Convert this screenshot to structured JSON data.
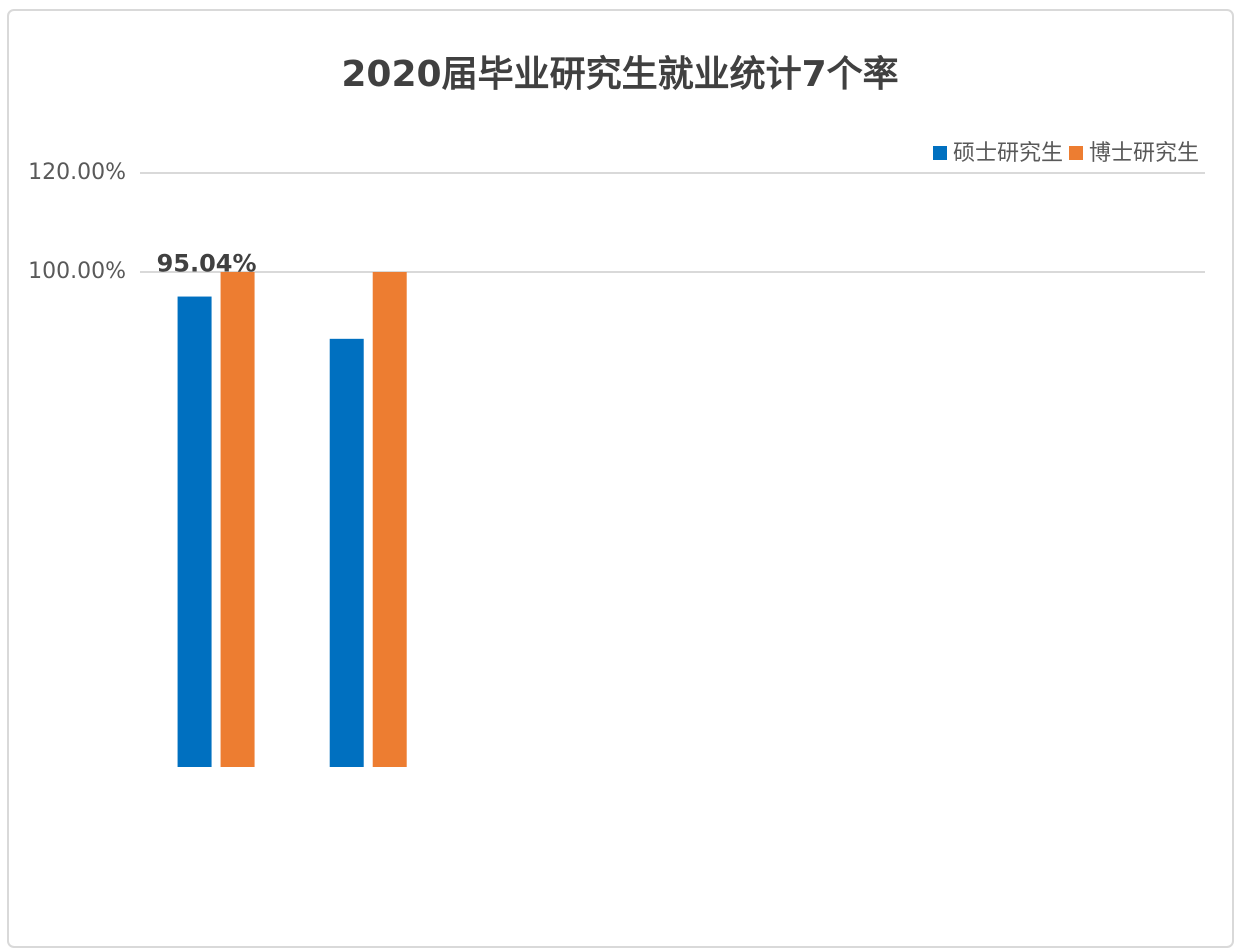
{
  "chart_data": {
    "type": "bar",
    "title": "2020届毕业研究生就业统计7个率",
    "categories": [
      null,
      null,
      null,
      null,
      null,
      null,
      null
    ],
    "series": [
      {
        "name": "硕士研究生",
        "color": "#0070c0",
        "values": [
          95.04,
          86.5,
          null,
          null,
          null,
          null,
          null
        ],
        "value_labels": [
          "95.04%",
          null,
          null,
          null,
          null,
          null,
          null
        ]
      },
      {
        "name": "博士研究生",
        "color": "#ed7d31",
        "values": [
          100,
          100,
          null,
          null,
          null,
          null,
          null
        ]
      }
    ],
    "ylim": [
      0,
      120
    ],
    "yticks": [
      {
        "value": 100,
        "label": "100.00%"
      },
      {
        "value": 120,
        "label": "120.00%"
      }
    ],
    "grid": true,
    "legend": "top-right"
  }
}
